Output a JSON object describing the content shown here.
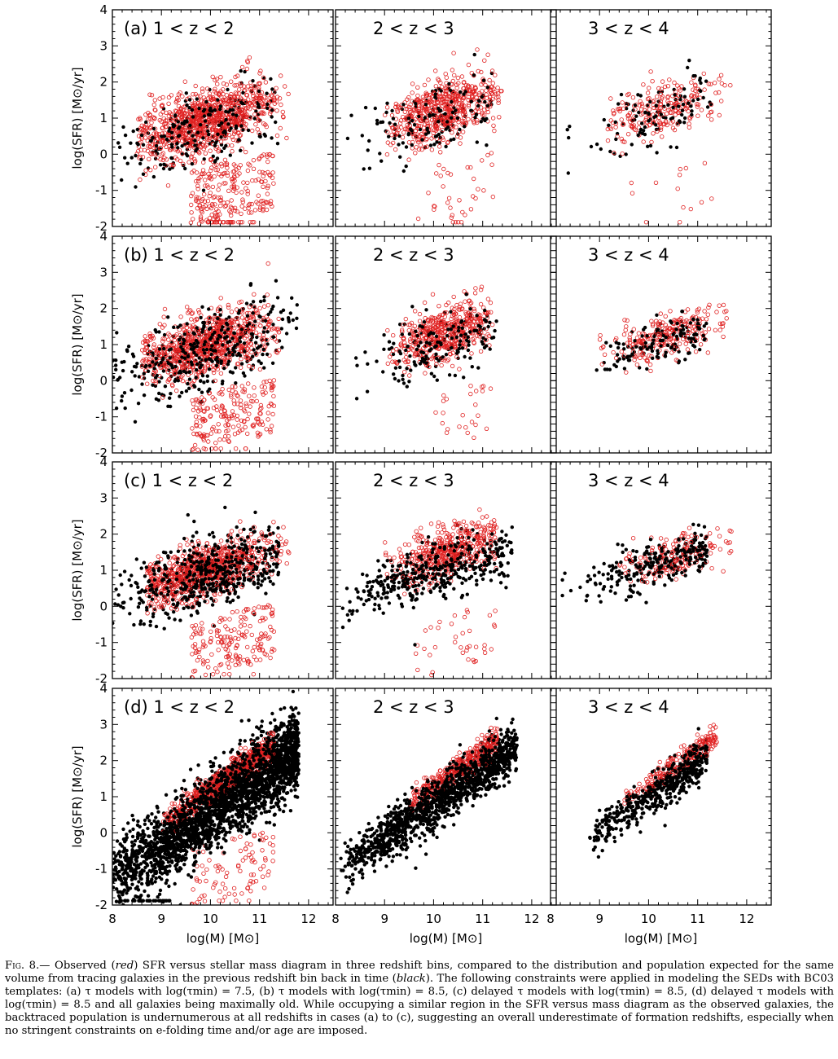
{
  "chart_data": {
    "type": "scatter",
    "layout": "grid 4 rows x 3 columns",
    "xlabel": "log(M) [M⊙]",
    "ylabel": "log(SFR) [M⊙/yr]",
    "xlim": [
      8,
      12.5
    ],
    "ylim": [
      -2,
      4
    ],
    "xticks": [
      "8",
      "9",
      "10",
      "11",
      "12"
    ],
    "yticks": [
      "-2",
      "-1",
      "0",
      "1",
      "2",
      "3",
      "4"
    ],
    "grid": false,
    "series_styles": {
      "observed": {
        "marker": "open circle",
        "color": "#e02020"
      },
      "backtraced": {
        "marker": "filled circle",
        "color": "#000000"
      }
    },
    "redshift_bins": [
      "1 < z < 2",
      "2 < z < 3",
      "3 < z < 4"
    ],
    "rows": [
      {
        "label": "(a)",
        "panels": [
          {
            "bin": "1 < z < 2",
            "observed": {
              "n": 1150,
              "x": [
                8.5,
                11.6
              ],
              "slope": 0.35,
              "center": [
                9.9,
                0.9
              ],
              "spread": 0.75,
              "quiescent_fraction": 0.18,
              "floor_count": 26
            },
            "backtraced": {
              "n": 260,
              "x": [
                8.0,
                11.4
              ],
              "center": [
                9.8,
                0.7
              ],
              "spread": 0.85
            }
          },
          {
            "bin": "2 < z < 3",
            "observed": {
              "n": 600,
              "x": [
                9.0,
                11.4
              ],
              "slope": 0.45,
              "center": [
                10.2,
                1.2
              ],
              "spread": 0.7,
              "quiescent_fraction": 0.05,
              "floor_count": 4
            },
            "backtraced": {
              "n": 160,
              "x": [
                8.1,
                11.2
              ],
              "center": [
                10.0,
                1.0
              ],
              "spread": 0.85
            }
          },
          {
            "bin": "3 < z < 4",
            "observed": {
              "n": 240,
              "x": [
                9.1,
                11.7
              ],
              "slope": 0.4,
              "center": [
                10.3,
                1.2
              ],
              "spread": 0.6,
              "quiescent_fraction": 0.04,
              "floor_count": 2
            },
            "backtraced": {
              "n": 110,
              "x": [
                8.1,
                11.3
              ],
              "center": [
                10.2,
                1.1
              ],
              "spread": 0.75
            }
          }
        ]
      },
      {
        "label": "(b)",
        "panels": [
          {
            "bin": "1 < z < 2",
            "observed": {
              "n": 1000,
              "x": [
                8.6,
                11.4
              ],
              "slope": 0.35,
              "center": [
                9.9,
                1.0
              ],
              "spread": 0.7,
              "quiescent_fraction": 0.2,
              "floor_count": 6
            },
            "backtraced": {
              "n": 420,
              "x": [
                8.0,
                11.8
              ],
              "center": [
                9.9,
                0.8
              ],
              "spread": 0.85
            }
          },
          {
            "bin": "2 < z < 3",
            "observed": {
              "n": 520,
              "x": [
                9.0,
                11.2
              ],
              "slope": 0.45,
              "center": [
                10.2,
                1.3
              ],
              "spread": 0.6,
              "quiescent_fraction": 0.05,
              "floor_count": 0
            },
            "backtraced": {
              "n": 190,
              "x": [
                8.4,
                11.3
              ],
              "center": [
                10.1,
                1.0
              ],
              "spread": 0.7
            }
          },
          {
            "bin": "3 < z < 4",
            "observed": {
              "n": 240,
              "x": [
                9.0,
                11.6
              ],
              "slope": 0.35,
              "center": [
                10.3,
                1.2
              ],
              "spread": 0.5,
              "quiescent_fraction": 0.0,
              "floor_count": 0
            },
            "backtraced": {
              "n": 150,
              "x": [
                8.9,
                11.2
              ],
              "center": [
                10.3,
                1.1
              ],
              "spread": 0.5
            }
          }
        ]
      },
      {
        "label": "(c)",
        "panels": [
          {
            "bin": "1 < z < 2",
            "observed": {
              "n": 900,
              "x": [
                8.7,
                11.6
              ],
              "slope": 0.4,
              "center": [
                9.9,
                1.0
              ],
              "spread": 0.6,
              "quiescent_fraction": 0.2,
              "floor_count": 4
            },
            "backtraced": {
              "n": 600,
              "x": [
                8.0,
                11.4
              ],
              "center": [
                10.0,
                0.9
              ],
              "spread": 0.8
            }
          },
          {
            "bin": "2 < z < 3",
            "observed": {
              "n": 480,
              "x": [
                9.0,
                11.3
              ],
              "slope": 0.45,
              "center": [
                10.3,
                1.5
              ],
              "spread": 0.6,
              "quiescent_fraction": 0.06,
              "floor_count": 0
            },
            "backtraced": {
              "n": 430,
              "x": [
                8.1,
                11.6
              ],
              "center": [
                10.1,
                1.0
              ],
              "spread": 0.65
            }
          },
          {
            "bin": "3 < z < 4",
            "observed": {
              "n": 170,
              "x": [
                9.4,
                11.7
              ],
              "slope": 0.35,
              "center": [
                10.5,
                1.4
              ],
              "spread": 0.45,
              "quiescent_fraction": 0.0,
              "floor_count": 0
            },
            "backtraced": {
              "n": 260,
              "x": [
                8.1,
                11.2
              ],
              "center": [
                10.2,
                1.2
              ],
              "spread": 0.5
            }
          }
        ]
      },
      {
        "label": "(d)",
        "panels": [
          {
            "bin": "1 < z < 2",
            "observed": {
              "n": 700,
              "x": [
                9.0,
                11.3
              ],
              "slope": 0.95,
              "intercept_at_10": 1.2,
              "spread": 0.22,
              "quiescent_fraction": 0.12,
              "floor_count": 4
            },
            "backtraced": {
              "n": 2600,
              "x": [
                8.0,
                11.8
              ],
              "slope": 0.95,
              "intercept_at_10": 0.8,
              "spread": 0.5,
              "floor_count": 40
            }
          },
          {
            "bin": "2 < z < 3",
            "observed": {
              "n": 380,
              "x": [
                9.5,
                11.3
              ],
              "slope": 0.95,
              "intercept_at_10": 1.3,
              "spread": 0.2,
              "quiescent_fraction": 0.0,
              "floor_count": 0
            },
            "backtraced": {
              "n": 1300,
              "x": [
                8.1,
                11.7
              ],
              "slope": 0.95,
              "intercept_at_10": 1.0,
              "spread": 0.3
            }
          },
          {
            "bin": "3 < z < 4",
            "observed": {
              "n": 220,
              "x": [
                9.5,
                11.4
              ],
              "slope": 0.95,
              "intercept_at_10": 1.35,
              "spread": 0.18,
              "quiescent_fraction": 0.0,
              "floor_count": 0
            },
            "backtraced": {
              "n": 520,
              "x": [
                8.8,
                11.2
              ],
              "slope": 0.95,
              "intercept_at_10": 1.2,
              "spread": 0.22
            }
          }
        ]
      }
    ]
  },
  "caption": {
    "label": "Fig. 8.—",
    "text_1": " Observed (",
    "red_word": "red",
    "text_2": ") SFR versus stellar mass diagram in three redshift bins, compared to the distribution and population expected for the same volume from tracing galaxies in the previous redshift bin back in time (",
    "black_word": "black",
    "text_3": "). The following constraints were applied in modeling the SEDs with BC03 templates: (a) τ models with log(τmin) = 7.5, (b) τ models with log(τmin) = 8.5, (c) delayed τ models with log(τmin) = 8.5, (d) delayed τ models with log(τmin) = 8.5 and all galaxies being maximally old. While occupying a similar region in the SFR versus mass diagram as the observed galaxies, the backtraced population is undernumerous at all redshifts in cases (a) to (c), suggesting an overall underestimate of formation redshifts, especially when no stringent constraints on e-folding time and/or age are imposed."
  }
}
